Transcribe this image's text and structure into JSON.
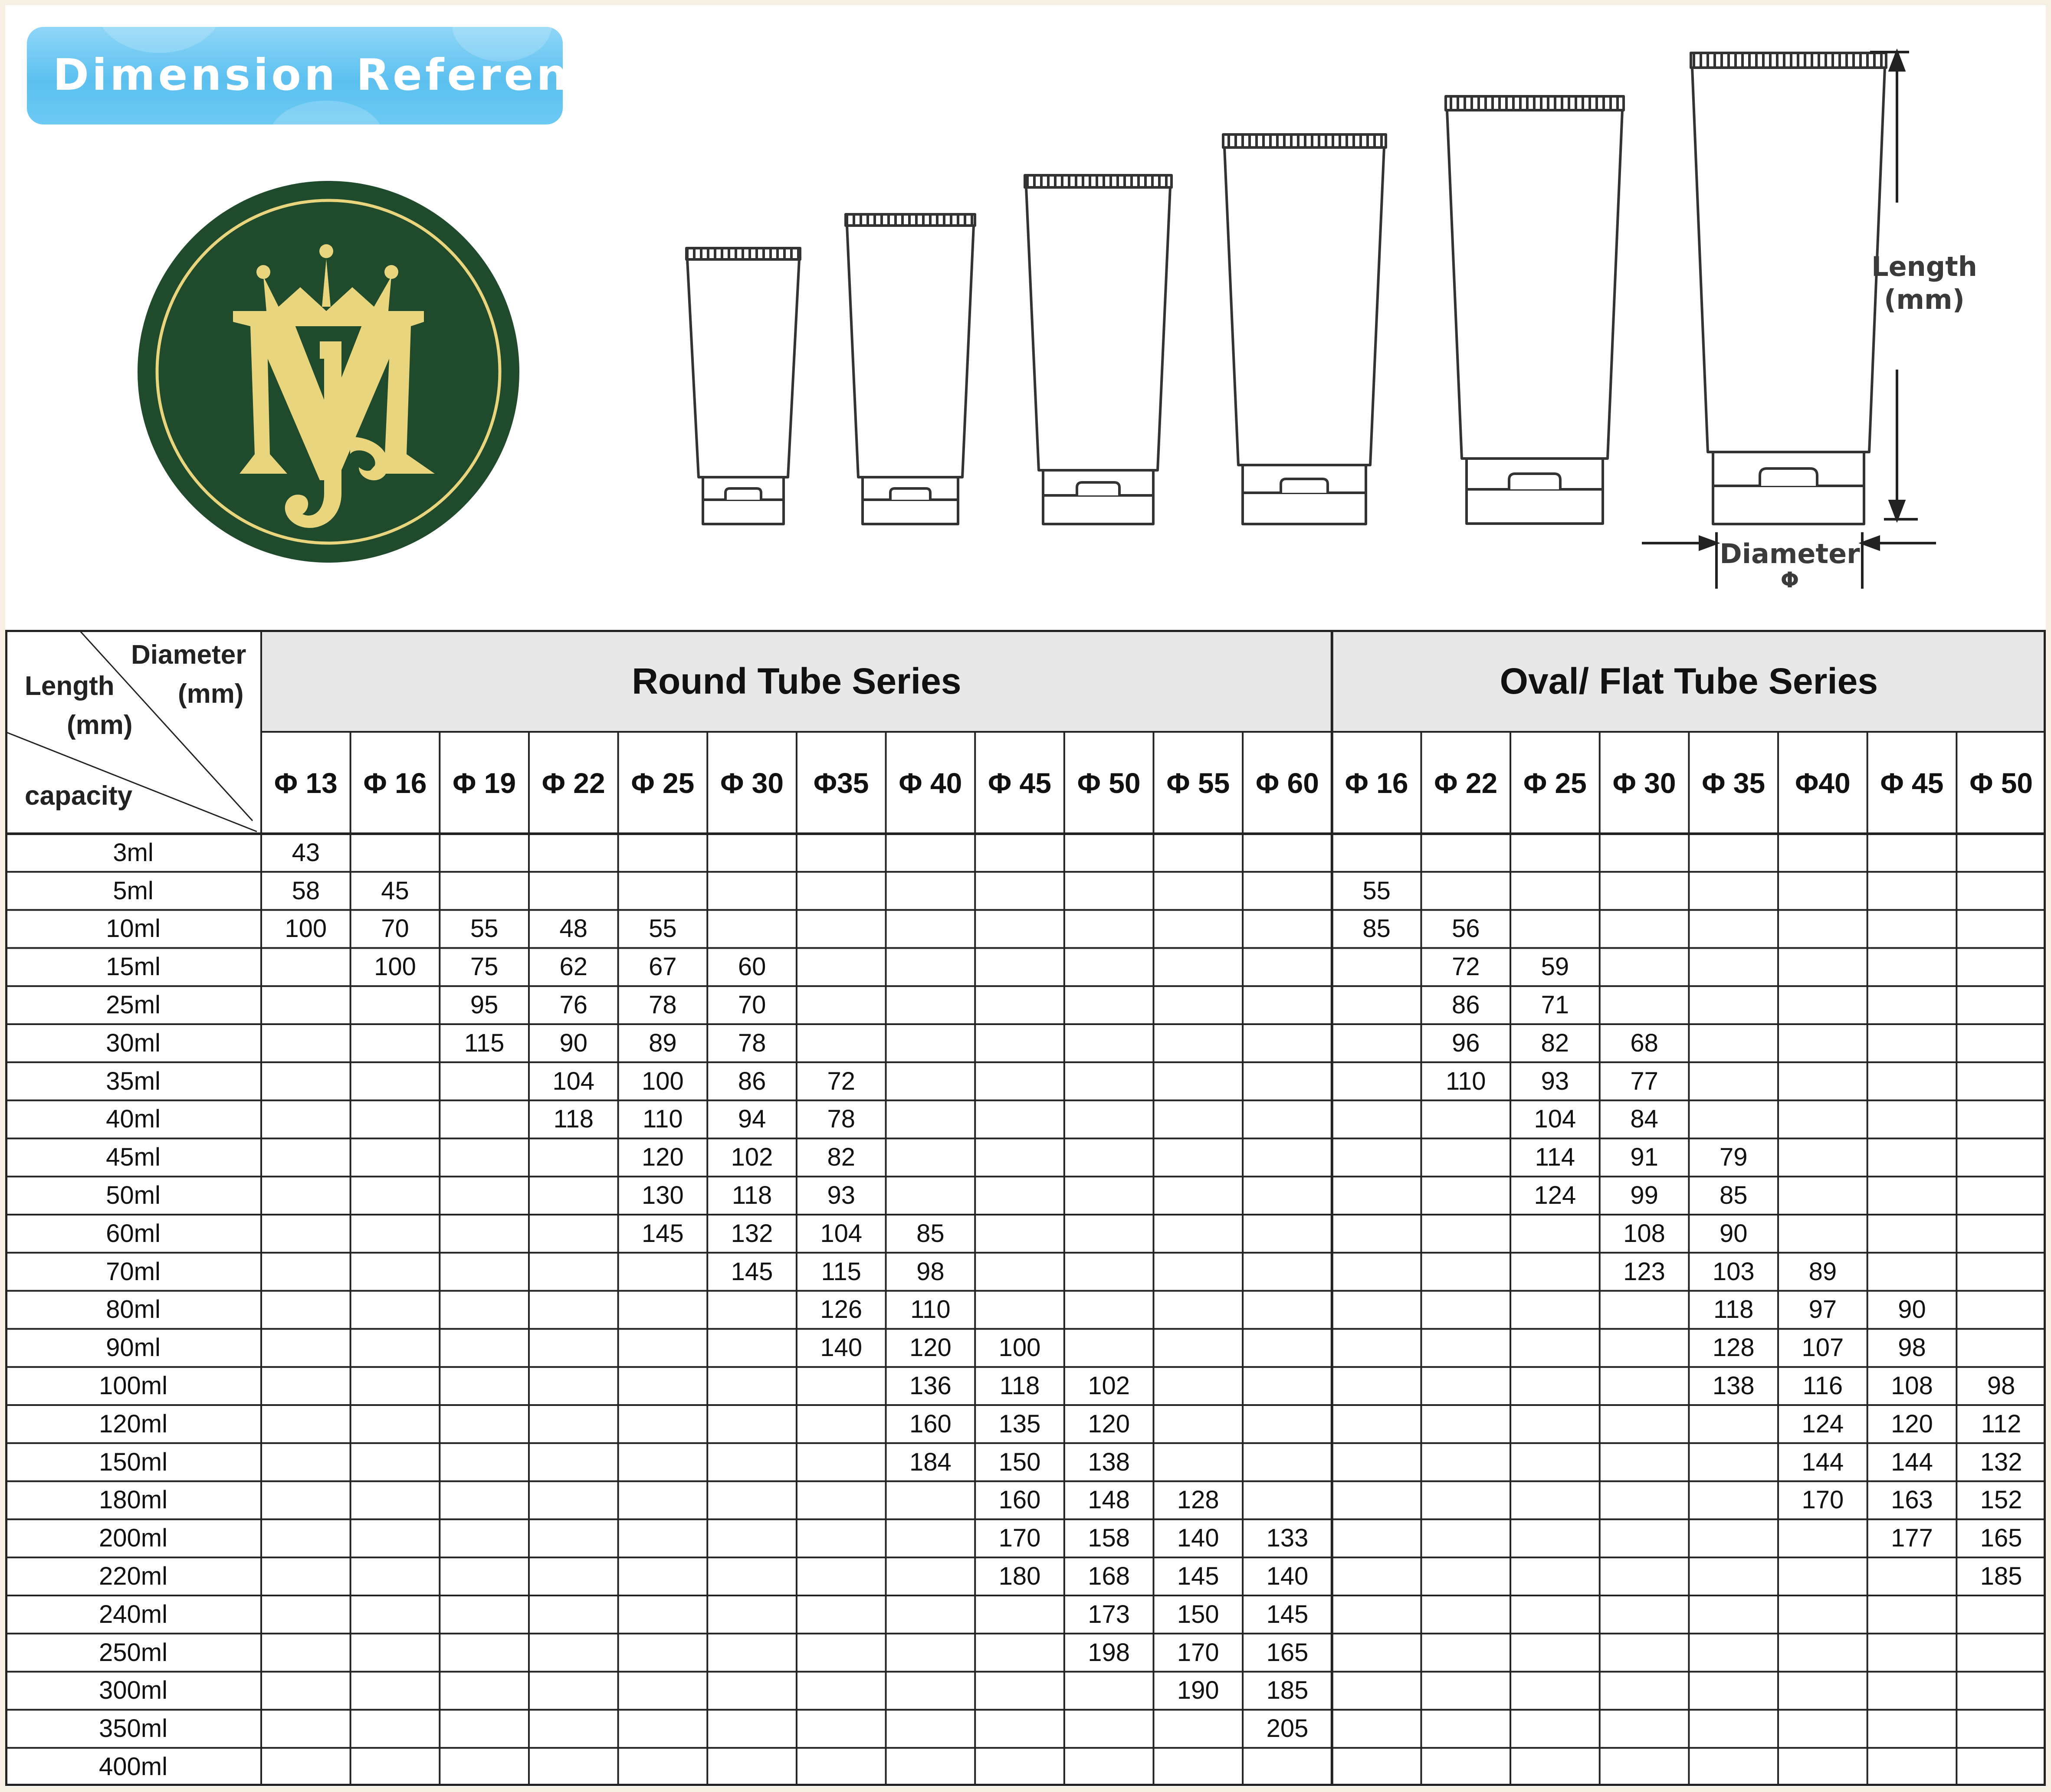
{
  "header": {
    "badge_title": "Dimension Reference",
    "length_label_line1": "Length",
    "length_label_line2": "(mm)",
    "diameter_label_line1": "Diameter",
    "diameter_label_line2": "Φ"
  },
  "colors": {
    "badge_blue": "#5cc0f0",
    "logo_green": "#1f4a2c",
    "logo_gold": "#e8d57d",
    "header_gray": "#e8e8e8",
    "page_border": "#f6efe3"
  },
  "logo": {
    "icon": "crowned-mj-monogram"
  },
  "table": {
    "corner": {
      "diameter": "Diameter",
      "mm_top": "(mm)",
      "length": "Length",
      "mm_bottom": "(mm)",
      "capacity": "capacity"
    },
    "series": [
      {
        "title": "Round Tube Series",
        "span": 12
      },
      {
        "title": "Oval/ Flat Tube Series",
        "span": 8
      }
    ],
    "columns": [
      "Φ 13",
      "Φ 16",
      "Φ 19",
      "Φ 22",
      "Φ 25",
      "Φ 30",
      "Φ35",
      "Φ 40",
      "Φ 45",
      "Φ 50",
      "Φ 55",
      "Φ 60",
      "Φ 16",
      "Φ 22",
      "Φ 25",
      "Φ 30",
      "Φ 35",
      "Φ40",
      "Φ 45",
      "Φ 50"
    ],
    "rows": [
      {
        "capacity": "3ml",
        "values": [
          "43",
          "",
          "",
          "",
          "",
          "",
          "",
          "",
          "",
          "",
          "",
          "",
          "",
          "",
          "",
          "",
          "",
          "",
          "",
          ""
        ]
      },
      {
        "capacity": "5ml",
        "values": [
          "58",
          "45",
          "",
          "",
          "",
          "",
          "",
          "",
          "",
          "",
          "",
          "",
          "55",
          "",
          "",
          "",
          "",
          "",
          "",
          ""
        ]
      },
      {
        "capacity": "10ml",
        "values": [
          "100",
          "70",
          "55",
          "48",
          "55",
          "",
          "",
          "",
          "",
          "",
          "",
          "",
          "85",
          "56",
          "",
          "",
          "",
          "",
          "",
          ""
        ]
      },
      {
        "capacity": "15ml",
        "values": [
          "",
          "100",
          "75",
          "62",
          "67",
          "60",
          "",
          "",
          "",
          "",
          "",
          "",
          "",
          "72",
          "59",
          "",
          "",
          "",
          "",
          ""
        ]
      },
      {
        "capacity": "25ml",
        "values": [
          "",
          "",
          "95",
          "76",
          "78",
          "70",
          "",
          "",
          "",
          "",
          "",
          "",
          "",
          "86",
          "71",
          "",
          "",
          "",
          "",
          ""
        ]
      },
      {
        "capacity": "30ml",
        "values": [
          "",
          "",
          "115",
          "90",
          "89",
          "78",
          "",
          "",
          "",
          "",
          "",
          "",
          "",
          "96",
          "82",
          "68",
          "",
          "",
          "",
          ""
        ]
      },
      {
        "capacity": "35ml",
        "values": [
          "",
          "",
          "",
          "104",
          "100",
          "86",
          "72",
          "",
          "",
          "",
          "",
          "",
          "",
          "110",
          "93",
          "77",
          "",
          "",
          "",
          ""
        ]
      },
      {
        "capacity": "40ml",
        "values": [
          "",
          "",
          "",
          "118",
          "110",
          "94",
          "78",
          "",
          "",
          "",
          "",
          "",
          "",
          "",
          "104",
          "84",
          "",
          "",
          "",
          ""
        ]
      },
      {
        "capacity": "45ml",
        "values": [
          "",
          "",
          "",
          "",
          "120",
          "102",
          "82",
          "",
          "",
          "",
          "",
          "",
          "",
          "",
          "114",
          "91",
          "79",
          "",
          "",
          ""
        ]
      },
      {
        "capacity": "50ml",
        "values": [
          "",
          "",
          "",
          "",
          "130",
          "118",
          "93",
          "",
          "",
          "",
          "",
          "",
          "",
          "",
          "124",
          "99",
          "85",
          "",
          "",
          ""
        ]
      },
      {
        "capacity": "60ml",
        "values": [
          "",
          "",
          "",
          "",
          "145",
          "132",
          "104",
          "85",
          "",
          "",
          "",
          "",
          "",
          "",
          "",
          "108",
          "90",
          "",
          "",
          ""
        ]
      },
      {
        "capacity": "70ml",
        "values": [
          "",
          "",
          "",
          "",
          "",
          "145",
          "115",
          "98",
          "",
          "",
          "",
          "",
          "",
          "",
          "",
          "123",
          "103",
          "89",
          "",
          ""
        ]
      },
      {
        "capacity": "80ml",
        "values": [
          "",
          "",
          "",
          "",
          "",
          "",
          "126",
          "110",
          "",
          "",
          "",
          "",
          "",
          "",
          "",
          "",
          "118",
          "97",
          "90",
          ""
        ]
      },
      {
        "capacity": "90ml",
        "values": [
          "",
          "",
          "",
          "",
          "",
          "",
          "140",
          "120",
          "100",
          "",
          "",
          "",
          "",
          "",
          "",
          "",
          "128",
          "107",
          "98",
          ""
        ]
      },
      {
        "capacity": "100ml",
        "values": [
          "",
          "",
          "",
          "",
          "",
          "",
          "",
          "136",
          "118",
          "102",
          "",
          "",
          "",
          "",
          "",
          "",
          "138",
          "116",
          "108",
          "98"
        ]
      },
      {
        "capacity": "120ml",
        "values": [
          "",
          "",
          "",
          "",
          "",
          "",
          "",
          "160",
          "135",
          "120",
          "",
          "",
          "",
          "",
          "",
          "",
          "",
          "124",
          "120",
          "112"
        ]
      },
      {
        "capacity": "150ml",
        "values": [
          "",
          "",
          "",
          "",
          "",
          "",
          "",
          "184",
          "150",
          "138",
          "",
          "",
          "",
          "",
          "",
          "",
          "",
          "144",
          "144",
          "132"
        ]
      },
      {
        "capacity": "180ml",
        "values": [
          "",
          "",
          "",
          "",
          "",
          "",
          "",
          "",
          "160",
          "148",
          "128",
          "",
          "",
          "",
          "",
          "",
          "",
          "170",
          "163",
          "152"
        ]
      },
      {
        "capacity": "200ml",
        "values": [
          "",
          "",
          "",
          "",
          "",
          "",
          "",
          "",
          "170",
          "158",
          "140",
          "133",
          "",
          "",
          "",
          "",
          "",
          "",
          "177",
          "165"
        ]
      },
      {
        "capacity": "220ml",
        "values": [
          "",
          "",
          "",
          "",
          "",
          "",
          "",
          "",
          "180",
          "168",
          "145",
          "140",
          "",
          "",
          "",
          "",
          "",
          "",
          "",
          "185"
        ]
      },
      {
        "capacity": "240ml",
        "values": [
          "",
          "",
          "",
          "",
          "",
          "",
          "",
          "",
          "",
          "173",
          "150",
          "145",
          "",
          "",
          "",
          "",
          "",
          "",
          "",
          ""
        ]
      },
      {
        "capacity": "250ml",
        "values": [
          "",
          "",
          "",
          "",
          "",
          "",
          "",
          "",
          "",
          "198",
          "170",
          "165",
          "",
          "",
          "",
          "",
          "",
          "",
          "",
          ""
        ]
      },
      {
        "capacity": "300ml",
        "values": [
          "",
          "",
          "",
          "",
          "",
          "",
          "",
          "",
          "",
          "",
          "190",
          "185",
          "",
          "",
          "",
          "",
          "",
          "",
          "",
          ""
        ]
      },
      {
        "capacity": "350ml",
        "values": [
          "",
          "",
          "",
          "",
          "",
          "",
          "",
          "",
          "",
          "",
          "",
          "205",
          "",
          "",
          "",
          "",
          "",
          "",
          "",
          ""
        ]
      },
      {
        "capacity": "400ml",
        "values": [
          "",
          "",
          "",
          "",
          "",
          "",
          "",
          "",
          "",
          "",
          "",
          "",
          "",
          "",
          "",
          "",
          "",
          "",
          "",
          ""
        ]
      }
    ]
  }
}
